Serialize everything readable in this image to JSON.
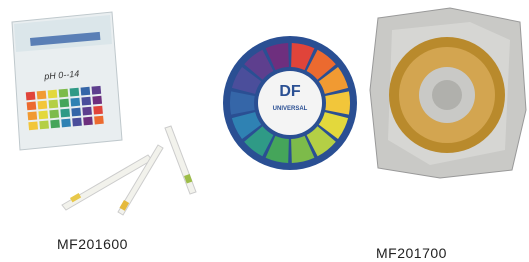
{
  "products": [
    {
      "code": "MF201600",
      "box_label": "pH 0--14"
    },
    {
      "code": "MF201700",
      "wheel_brand": "DF",
      "wheel_label": "UNIVERSAL"
    }
  ]
}
